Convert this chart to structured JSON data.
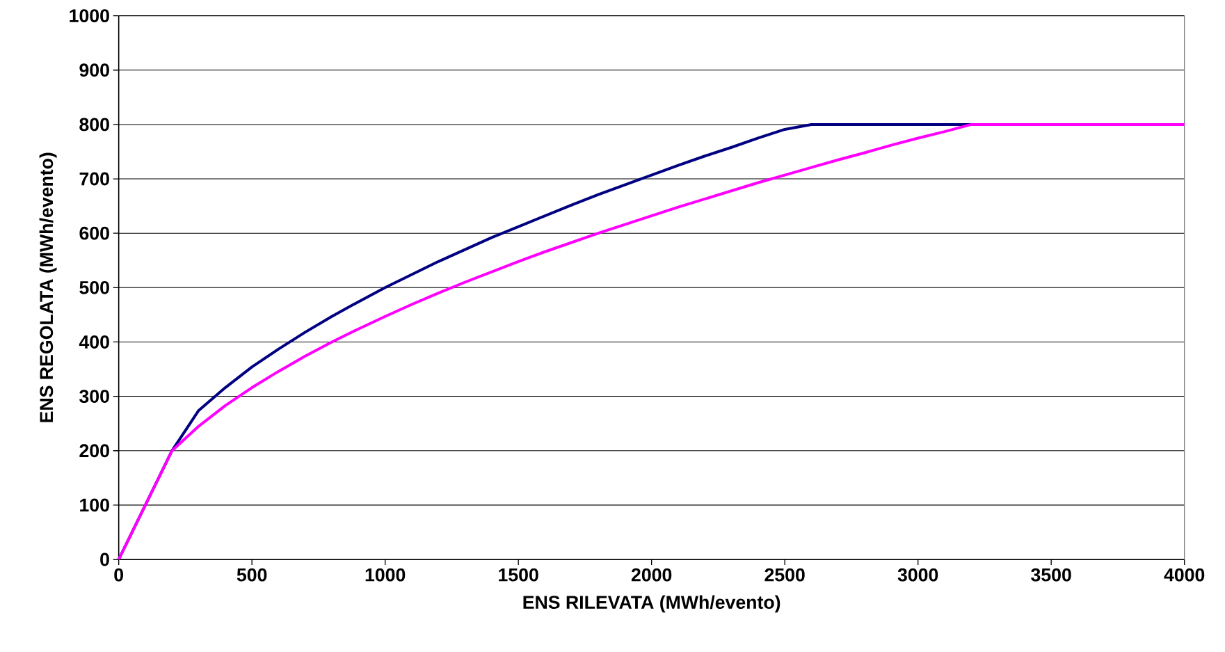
{
  "chart_data": {
    "type": "line",
    "xlabel": "ENS RILEVATA (MWh/evento)",
    "ylabel": "ENS REGOLATA (MWh/evento)",
    "xlim": [
      0,
      4000
    ],
    "ylim": [
      0,
      1000
    ],
    "xticks": [
      0,
      500,
      1000,
      1500,
      2000,
      2500,
      3000,
      3500,
      4000
    ],
    "yticks": [
      0,
      100,
      200,
      300,
      400,
      500,
      600,
      700,
      800,
      900,
      1000
    ],
    "grid": "y",
    "series": [
      {
        "color": "#000080",
        "x": [
          0,
          200,
          300,
          400,
          500,
          600,
          700,
          800,
          900,
          1000,
          1100,
          1200,
          1300,
          1400,
          1500,
          1600,
          1700,
          1800,
          1900,
          2000,
          2100,
          2200,
          2300,
          2400,
          2500,
          2600,
          3200
        ],
        "values": [
          0,
          200,
          274,
          316,
          354,
          387,
          418,
          447,
          474,
          500,
          524,
          548,
          570,
          592,
          612,
          632,
          652,
          671,
          689,
          707,
          725,
          742,
          758,
          775,
          791,
          800,
          800
        ]
      },
      {
        "color": "#ff00ff",
        "x": [
          0,
          200,
          300,
          400,
          500,
          600,
          700,
          800,
          900,
          1000,
          1100,
          1200,
          1300,
          1400,
          1500,
          1600,
          1700,
          1800,
          1900,
          2000,
          2100,
          2200,
          2300,
          2400,
          2500,
          2600,
          2700,
          2800,
          2900,
          3000,
          3100,
          3200,
          4000
        ],
        "values": [
          0,
          200,
          245,
          283,
          316,
          346,
          374,
          400,
          424,
          447,
          469,
          490,
          510,
          529,
          548,
          566,
          583,
          600,
          616,
          632,
          648,
          663,
          678,
          693,
          707,
          721,
          735,
          748,
          762,
          775,
          787,
          800,
          800
        ]
      }
    ]
  }
}
